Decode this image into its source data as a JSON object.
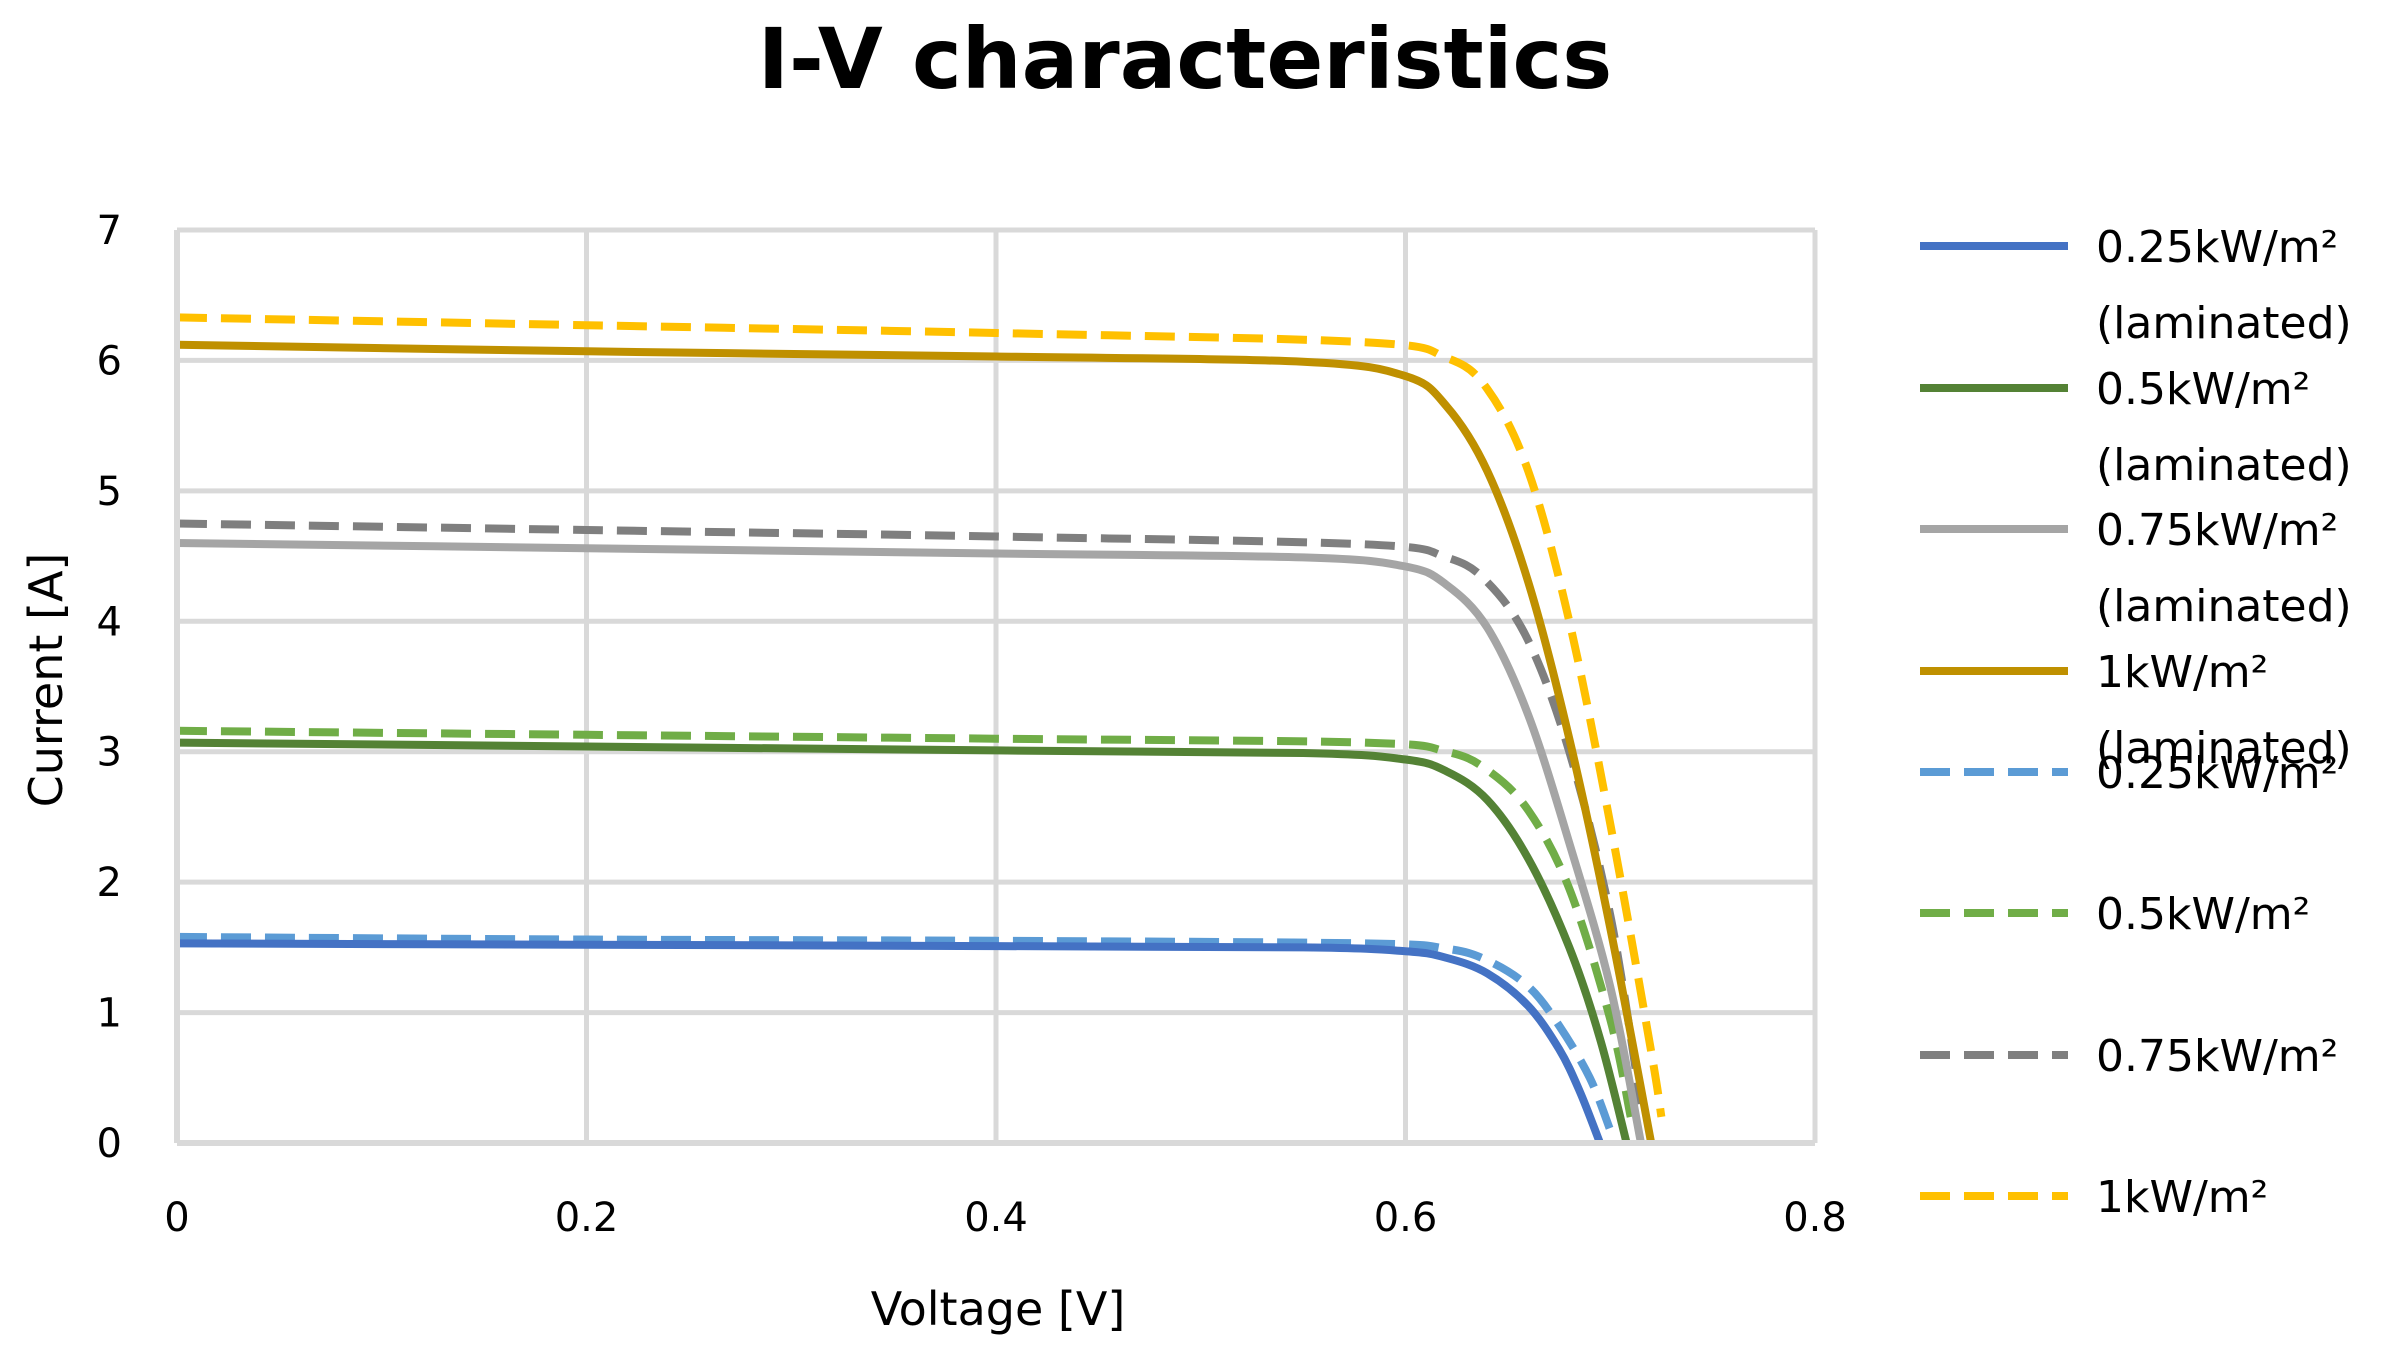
{
  "chart_data": {
    "type": "line",
    "title": "I-V characteristics",
    "xlabel": "Voltage [V]",
    "ylabel": "Current [A]",
    "xlim": [
      0,
      0.8
    ],
    "ylim": [
      0,
      7
    ],
    "xticks": [
      "0",
      "0.2",
      "0.4",
      "0.6",
      "0.8"
    ],
    "yticks": [
      "0",
      "1",
      "2",
      "3",
      "4",
      "5",
      "6",
      "7"
    ],
    "grid": true,
    "legend_position": "right",
    "series": [
      {
        "name": "0.25kW/m²",
        "name_line2": "(laminated)",
        "color": "#4472C4",
        "dash": "solid",
        "points": [
          [
            0,
            1.53
          ],
          [
            0.2,
            1.52
          ],
          [
            0.4,
            1.51
          ],
          [
            0.55,
            1.5
          ],
          [
            0.6,
            1.47
          ],
          [
            0.62,
            1.42
          ],
          [
            0.64,
            1.3
          ],
          [
            0.66,
            1.05
          ],
          [
            0.675,
            0.72
          ],
          [
            0.685,
            0.4
          ],
          [
            0.695,
            0
          ]
        ]
      },
      {
        "name": "0.5kW/m²",
        "name_line2": "(laminated)",
        "color": "#548235",
        "dash": "solid",
        "points": [
          [
            0,
            3.07
          ],
          [
            0.2,
            3.04
          ],
          [
            0.4,
            3.01
          ],
          [
            0.55,
            2.99
          ],
          [
            0.6,
            2.94
          ],
          [
            0.62,
            2.85
          ],
          [
            0.64,
            2.63
          ],
          [
            0.66,
            2.18
          ],
          [
            0.68,
            1.5
          ],
          [
            0.695,
            0.8
          ],
          [
            0.708,
            0
          ]
        ]
      },
      {
        "name": "0.75kW/m²",
        "name_line2": "(laminated)",
        "color": "#A5A5A5",
        "dash": "solid",
        "points": [
          [
            0,
            4.6
          ],
          [
            0.2,
            4.56
          ],
          [
            0.4,
            4.52
          ],
          [
            0.55,
            4.49
          ],
          [
            0.6,
            4.42
          ],
          [
            0.62,
            4.28
          ],
          [
            0.64,
            3.95
          ],
          [
            0.66,
            3.28
          ],
          [
            0.68,
            2.3
          ],
          [
            0.7,
            1.2
          ],
          [
            0.715,
            0
          ]
        ]
      },
      {
        "name": "1kW/m²",
        "name_line2": "(laminated)",
        "color": "#BF9000",
        "dash": "solid",
        "points": [
          [
            0,
            6.12
          ],
          [
            0.2,
            6.07
          ],
          [
            0.4,
            6.03
          ],
          [
            0.55,
            5.99
          ],
          [
            0.6,
            5.88
          ],
          [
            0.62,
            5.65
          ],
          [
            0.64,
            5.15
          ],
          [
            0.66,
            4.3
          ],
          [
            0.68,
            3.1
          ],
          [
            0.7,
            1.65
          ],
          [
            0.72,
            0
          ]
        ]
      },
      {
        "name": "0.25kW/m²",
        "name_line2": "",
        "color": "#5B9BD5",
        "dash": "dashed",
        "points": [
          [
            0,
            1.58
          ],
          [
            0.2,
            1.56
          ],
          [
            0.4,
            1.55
          ],
          [
            0.58,
            1.53
          ],
          [
            0.62,
            1.49
          ],
          [
            0.64,
            1.4
          ],
          [
            0.66,
            1.2
          ],
          [
            0.675,
            0.9
          ],
          [
            0.69,
            0.5
          ],
          [
            0.7,
            0.1
          ]
        ]
      },
      {
        "name": "0.5kW/m²",
        "name_line2": "",
        "color": "#70AD47",
        "dash": "dashed",
        "points": [
          [
            0,
            3.16
          ],
          [
            0.2,
            3.13
          ],
          [
            0.4,
            3.1
          ],
          [
            0.58,
            3.07
          ],
          [
            0.62,
            3.0
          ],
          [
            0.64,
            2.86
          ],
          [
            0.66,
            2.55
          ],
          [
            0.68,
            1.95
          ],
          [
            0.7,
            0.95
          ],
          [
            0.71,
            0.2
          ]
        ]
      },
      {
        "name": "0.75kW/m²",
        "name_line2": "",
        "color": "#7F7F7F",
        "dash": "dashed",
        "points": [
          [
            0,
            4.75
          ],
          [
            0.2,
            4.7
          ],
          [
            0.4,
            4.65
          ],
          [
            0.58,
            4.59
          ],
          [
            0.62,
            4.49
          ],
          [
            0.64,
            4.3
          ],
          [
            0.66,
            3.85
          ],
          [
            0.68,
            3.0
          ],
          [
            0.7,
            1.75
          ],
          [
            0.715,
            0.3
          ]
        ]
      },
      {
        "name": "1kW/m²",
        "name_line2": "",
        "color": "#FFC000",
        "dash": "dashed",
        "points": [
          [
            0,
            6.33
          ],
          [
            0.2,
            6.27
          ],
          [
            0.4,
            6.21
          ],
          [
            0.58,
            6.14
          ],
          [
            0.62,
            6.02
          ],
          [
            0.64,
            5.78
          ],
          [
            0.66,
            5.15
          ],
          [
            0.68,
            4.0
          ],
          [
            0.7,
            2.45
          ],
          [
            0.72,
            0.7
          ],
          [
            0.725,
            0.2
          ]
        ]
      }
    ]
  }
}
